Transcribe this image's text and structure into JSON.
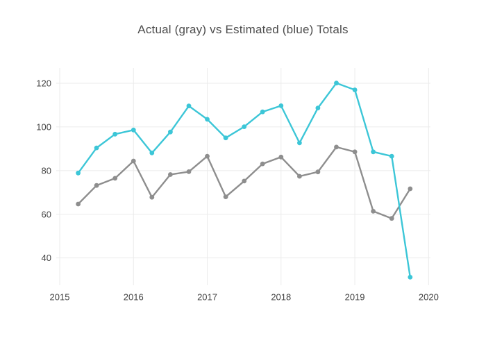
{
  "chart_data": {
    "type": "line",
    "title": "Actual (gray) vs Estimated (blue) Totals",
    "xlabel": "",
    "ylabel": "",
    "grid": true,
    "legend_position": "none",
    "xlim": [
      2014.953,
      2020.025
    ],
    "ylim": [
      27.5,
      127.0
    ],
    "x_ticks": [
      2015,
      2016,
      2017,
      2018,
      2019,
      2020
    ],
    "x_tick_labels": [
      "2015",
      "2016",
      "2017",
      "2018",
      "2019",
      "2020"
    ],
    "y_ticks": [
      40,
      60,
      80,
      100,
      120
    ],
    "y_tick_labels": [
      "40",
      "60",
      "80",
      "100",
      "120"
    ],
    "x": [
      2015.25,
      2015.5,
      2015.75,
      2016.0,
      2016.25,
      2016.5,
      2016.75,
      2017.0,
      2017.25,
      2017.5,
      2017.75,
      2018.0,
      2018.25,
      2018.5,
      2018.75,
      2019.0,
      2019.25,
      2019.5,
      2019.75
    ],
    "series": [
      {
        "name": "Actual",
        "color": "#8e8e8e",
        "values": [
          64.7,
          73.2,
          76.5,
          84.4,
          67.8,
          78.2,
          79.5,
          86.6,
          68.0,
          75.2,
          83.1,
          86.2,
          77.4,
          79.4,
          90.8,
          88.6,
          61.4,
          58.1,
          71.7
        ]
      },
      {
        "name": "Estimated",
        "color": "#3cc6d7",
        "values": [
          78.9,
          90.4,
          96.7,
          98.6,
          88.1,
          97.7,
          109.6,
          103.5,
          95.0,
          100.1,
          106.9,
          109.7,
          92.7,
          108.7,
          120.1,
          117.0,
          88.6,
          86.6,
          31.2
        ]
      }
    ],
    "style": {
      "grid_color": "#ebebeb",
      "tick_color": "#444444",
      "title_color": "#4d4d4d",
      "background": "#ffffff"
    }
  }
}
